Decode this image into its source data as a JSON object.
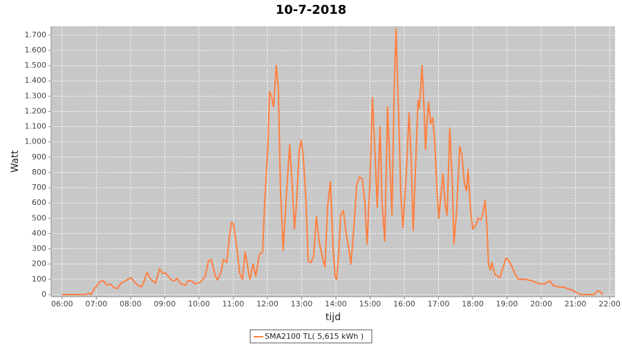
{
  "chart_data": {
    "type": "line",
    "title": "10-7-2018",
    "xlabel": "tijd",
    "ylabel": "Watt",
    "x": [
      6.0,
      6.71,
      6.77,
      6.85,
      6.95,
      7.11,
      7.21,
      7.31,
      7.41,
      7.52,
      7.62,
      7.72,
      7.82,
      7.92,
      8.02,
      8.12,
      8.22,
      8.32,
      8.42,
      8.48,
      8.59,
      8.73,
      8.85,
      8.93,
      9.03,
      9.17,
      9.27,
      9.37,
      9.47,
      9.6,
      9.68,
      9.78,
      9.88,
      10.04,
      10.18,
      10.28,
      10.36,
      10.48,
      10.54,
      10.65,
      10.71,
      10.81,
      10.89,
      10.95,
      11.01,
      11.11,
      11.19,
      11.27,
      11.35,
      11.41,
      11.49,
      11.58,
      11.66,
      11.76,
      11.86,
      11.92,
      12.02,
      12.06,
      12.12,
      12.18,
      12.26,
      12.32,
      12.38,
      12.46,
      12.54,
      12.65,
      12.73,
      12.79,
      12.85,
      12.93,
      12.99,
      13.05,
      13.13,
      13.19,
      13.27,
      13.35,
      13.43,
      13.51,
      13.6,
      13.68,
      13.76,
      13.84,
      13.92,
      13.98,
      14.02,
      14.08,
      14.14,
      14.22,
      14.3,
      14.38,
      14.44,
      14.52,
      14.61,
      14.69,
      14.77,
      14.85,
      14.91,
      14.99,
      15.07,
      15.13,
      15.21,
      15.29,
      15.35,
      15.43,
      15.51,
      15.57,
      15.64,
      15.7,
      15.76,
      15.82,
      15.9,
      15.96,
      16.06,
      16.14,
      16.2,
      16.26,
      16.34,
      16.4,
      16.44,
      16.52,
      16.58,
      16.62,
      16.67,
      16.71,
      16.77,
      16.83,
      16.89,
      16.95,
      17.01,
      17.07,
      17.13,
      17.19,
      17.25,
      17.33,
      17.41,
      17.45,
      17.53,
      17.62,
      17.68,
      17.76,
      17.82,
      17.86,
      17.94,
      18.0,
      18.08,
      18.16,
      18.24,
      18.3,
      18.36,
      18.42,
      18.46,
      18.52,
      18.56,
      18.65,
      18.73,
      18.79,
      18.89,
      18.97,
      19.03,
      19.13,
      19.23,
      19.33,
      19.53,
      19.74,
      19.94,
      20.1,
      20.18,
      20.26,
      20.34,
      20.5,
      20.65,
      20.75,
      20.91,
      21.05,
      21.15,
      21.55,
      21.66,
      21.72,
      21.8
    ],
    "series": [
      {
        "name": "SMA2100 TL( 5,615 kWh )",
        "color": "#ff7f3f",
        "values": [
          0,
          0,
          10,
          0,
          40,
          85,
          90,
          60,
          70,
          45,
          40,
          75,
          85,
          100,
          110,
          80,
          60,
          50,
          100,
          145,
          100,
          75,
          170,
          140,
          140,
          100,
          90,
          105,
          70,
          60,
          90,
          90,
          70,
          80,
          120,
          220,
          230,
          120,
          95,
          150,
          230,
          210,
          380,
          475,
          460,
          300,
          140,
          100,
          280,
          200,
          100,
          200,
          120,
          260,
          280,
          600,
          1000,
          1330,
          1300,
          1230,
          1500,
          1350,
          700,
          290,
          600,
          980,
          700,
          430,
          600,
          950,
          1010,
          900,
          600,
          220,
          210,
          250,
          510,
          350,
          250,
          180,
          580,
          740,
          300,
          120,
          100,
          250,
          520,
          550,
          400,
          300,
          200,
          420,
          720,
          770,
          760,
          600,
          330,
          700,
          1290,
          1000,
          570,
          1100,
          600,
          350,
          1230,
          900,
          520,
          1300,
          1740,
          1300,
          650,
          440,
          800,
          1190,
          900,
          420,
          900,
          1270,
          1220,
          1500,
          1200,
          950,
          1150,
          1260,
          1120,
          1160,
          1000,
          700,
          500,
          650,
          790,
          600,
          520,
          1090,
          700,
          330,
          550,
          970,
          920,
          720,
          680,
          820,
          550,
          430,
          450,
          500,
          490,
          530,
          620,
          420,
          200,
          160,
          210,
          130,
          120,
          110,
          180,
          240,
          230,
          190,
          140,
          100,
          100,
          90,
          70,
          70,
          80,
          90,
          60,
          50,
          50,
          40,
          30,
          10,
          0,
          0,
          25,
          20,
          0
        ]
      }
    ],
    "xlim": [
      5.68,
      22.16
    ],
    "xticks": [
      {
        "value": 6,
        "label": "06:00"
      },
      {
        "value": 7,
        "label": "07:00"
      },
      {
        "value": 8,
        "label": "08:00"
      },
      {
        "value": 9,
        "label": "09:00"
      },
      {
        "value": 10,
        "label": "10:00"
      },
      {
        "value": 11,
        "label": "11:00"
      },
      {
        "value": 12,
        "label": "12:00"
      },
      {
        "value": 13,
        "label": "13:00"
      },
      {
        "value": 14,
        "label": "14:00"
      },
      {
        "value": 15,
        "label": "15:00"
      },
      {
        "value": 16,
        "label": "16:00"
      },
      {
        "value": 17,
        "label": "17:00"
      },
      {
        "value": 18,
        "label": "18:00"
      },
      {
        "value": 19,
        "label": "19:00"
      },
      {
        "value": 20,
        "label": "20:00"
      },
      {
        "value": 21,
        "label": "21:00"
      },
      {
        "value": 22,
        "label": "22:00"
      }
    ],
    "ylim": [
      -14,
      1758
    ],
    "yticks": [
      0,
      100,
      200,
      300,
      400,
      500,
      600,
      700,
      800,
      900,
      {
        "value": 1000,
        "label": "1.000"
      },
      {
        "value": 1100,
        "label": "1.100"
      },
      {
        "value": 1200,
        "label": "1.200"
      },
      {
        "value": 1300,
        "label": "1.300"
      },
      {
        "value": 1400,
        "label": "1.400"
      },
      {
        "value": 1500,
        "label": "1.500"
      },
      {
        "value": 1600,
        "label": "1.600"
      },
      {
        "value": 1700,
        "label": "1.700"
      }
    ],
    "grid": true
  }
}
